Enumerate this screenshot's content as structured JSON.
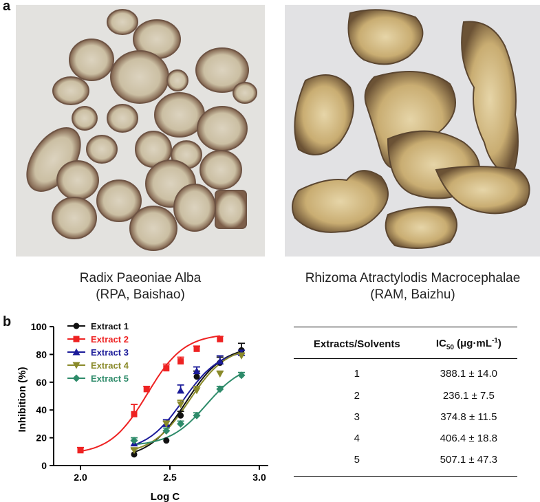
{
  "panel_a_label": "a",
  "panel_b_label": "b",
  "photos": [
    {
      "caption_line1": "Radix Paeoniae Alba",
      "caption_line2": "(RPA, Baishao)"
    },
    {
      "caption_line1": "Rhizoma Atractylodis Macrocephalae",
      "caption_line2": "(RAM, Baizhu)"
    }
  ],
  "table": {
    "col1_header": "Extracts/Solvents",
    "col2_header_prefix": "IC",
    "col2_header_sub": "50",
    "col2_header_mid": " (μg·mL",
    "col2_header_sup": "-1",
    "col2_header_suffix": ")",
    "rows": [
      {
        "extract": "1",
        "ic50": "388.1 ± 14.0"
      },
      {
        "extract": "2",
        "ic50": "236.1 ± 7.5"
      },
      {
        "extract": "3",
        "ic50": "374.8 ± 11.5"
      },
      {
        "extract": "4",
        "ic50": "406.4 ± 18.8"
      },
      {
        "extract": "5",
        "ic50": "507.1 ± 47.3"
      }
    ]
  },
  "chart_data": {
    "type": "scatter",
    "xlabel": "Log C",
    "ylabel": "Inhibition (%)",
    "xlim": [
      1.85,
      3.05
    ],
    "ylim": [
      0,
      100
    ],
    "xticks": [
      2.0,
      2.5,
      3.0
    ],
    "yticks": [
      0,
      20,
      40,
      60,
      80,
      100
    ],
    "legend_position": "top-left",
    "series": [
      {
        "name": "Extract 1",
        "color": "#111111",
        "marker": "circle",
        "x": [
          2.3,
          2.48,
          2.56,
          2.65,
          2.78,
          2.9
        ],
        "y": [
          8,
          18,
          36,
          64,
          74,
          83
        ],
        "err": [
          0,
          0,
          3,
          4,
          4,
          5
        ]
      },
      {
        "name": "Extract 2",
        "color": "#ee2222",
        "marker": "square",
        "x": [
          2.0,
          2.3,
          2.37,
          2.48,
          2.56,
          2.65,
          2.78
        ],
        "y": [
          11,
          37,
          55,
          70,
          75,
          84,
          91
        ],
        "err": [
          2,
          7,
          2,
          3,
          3,
          2,
          2
        ]
      },
      {
        "name": "Extract 3",
        "color": "#1b1b99",
        "marker": "triangle-up",
        "x": [
          2.3,
          2.48,
          2.56,
          2.65,
          2.78,
          2.9
        ],
        "y": [
          16,
          30,
          54,
          68,
          75,
          81
        ],
        "err": [
          2,
          3,
          4,
          3,
          4,
          2
        ]
      },
      {
        "name": "Extract 4",
        "color": "#8a8a2a",
        "marker": "triangle-down",
        "x": [
          2.3,
          2.48,
          2.56,
          2.65,
          2.78,
          2.9
        ],
        "y": [
          11,
          30,
          44,
          54,
          66,
          79
        ],
        "err": [
          1,
          2,
          3,
          3,
          2,
          2
        ]
      },
      {
        "name": "Extract 5",
        "color": "#2e8b6a",
        "marker": "diamond",
        "x": [
          2.3,
          2.48,
          2.56,
          2.65,
          2.78,
          2.9
        ],
        "y": [
          18,
          25,
          30,
          36,
          55,
          65
        ],
        "err": [
          2,
          2,
          2,
          2,
          2,
          2
        ]
      }
    ],
    "fits": [
      {
        "series": "Extract 1",
        "bottom": 5,
        "top": 86,
        "logec50": 2.589
      },
      {
        "series": "Extract 2",
        "bottom": 8,
        "top": 95,
        "logec50": 2.373
      },
      {
        "series": "Extract 3",
        "bottom": 10,
        "top": 84,
        "logec50": 2.574
      },
      {
        "series": "Extract 4",
        "bottom": 8,
        "top": 86,
        "logec50": 2.609
      },
      {
        "series": "Extract 5",
        "bottom": 14,
        "top": 74,
        "logec50": 2.705
      }
    ]
  }
}
